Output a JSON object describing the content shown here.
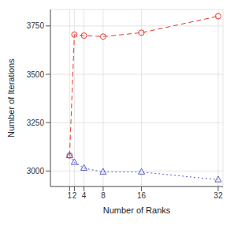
{
  "chart_data": {
    "type": "line",
    "x_label": "Number of Ranks",
    "y_label": "Number of Iterations",
    "x": [
      1,
      2,
      4,
      8,
      16,
      32
    ],
    "series": [
      {
        "color": "#e8392a",
        "marker": "circle",
        "line_style": "dashed",
        "values": [
          3080,
          3705,
          3700,
          3695,
          3715,
          3800
        ]
      },
      {
        "color": "#5b5bd0",
        "marker": "triangle",
        "line_style": "dotted",
        "values": [
          3080,
          3045,
          3015,
          2995,
          2995,
          2955
        ]
      }
    ],
    "xlim": [
      -3,
      33
    ],
    "xticks": [
      1,
      2,
      4,
      8,
      16,
      32
    ],
    "ylim": [
      2920,
      3835
    ],
    "yticks": [
      3000,
      3250,
      3500,
      3750
    ],
    "grid": true
  }
}
